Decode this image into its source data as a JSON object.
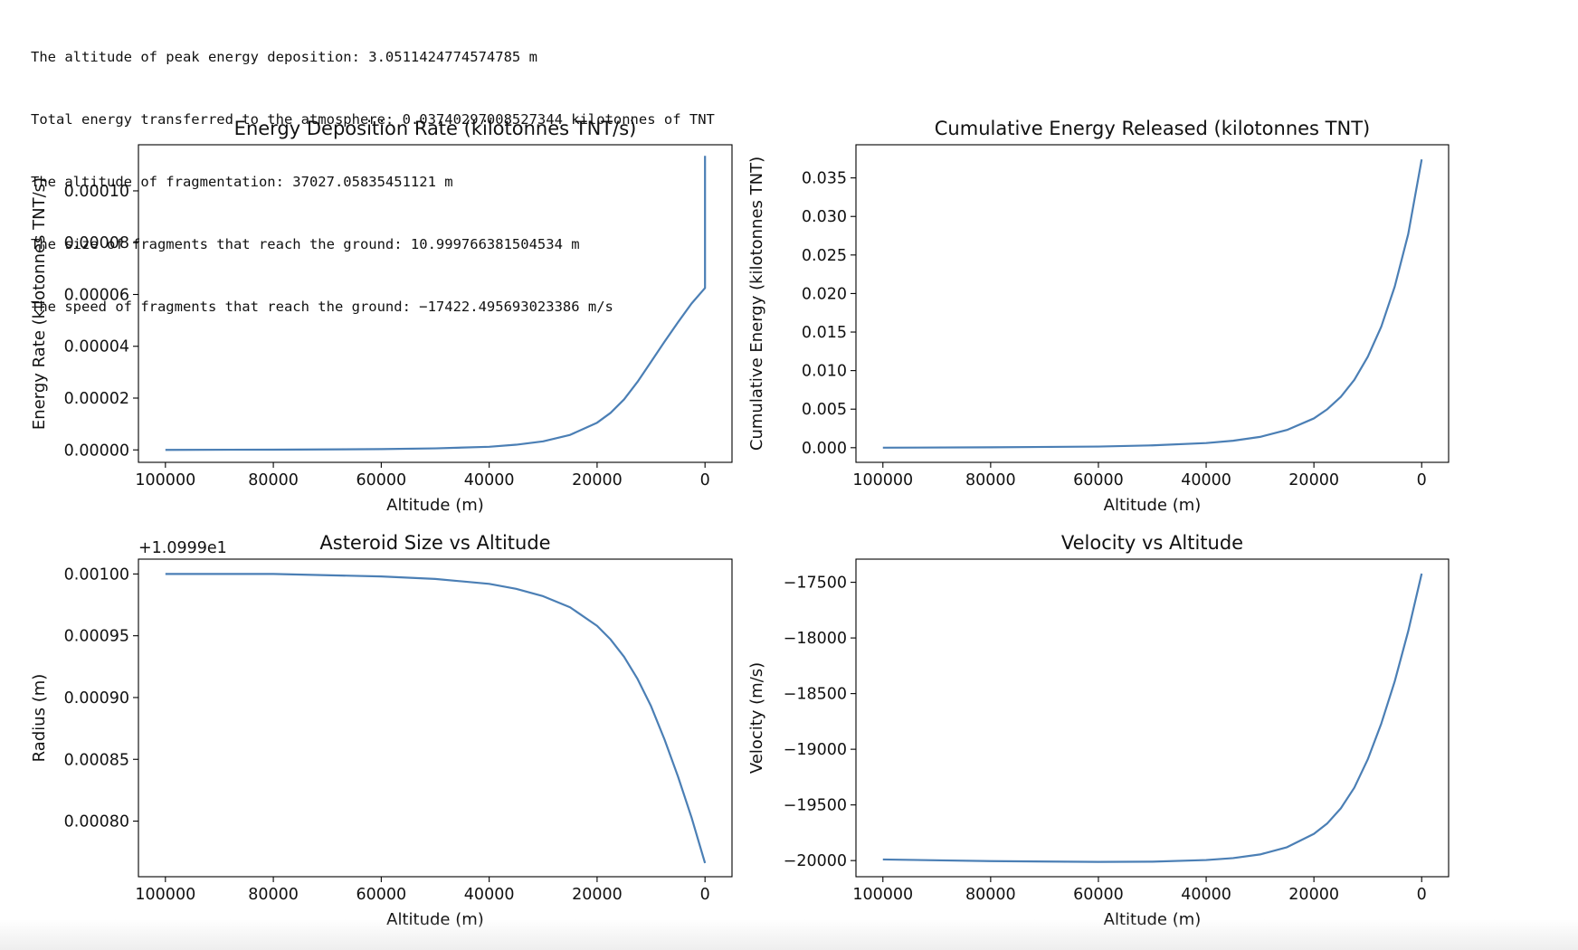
{
  "output_lines": [
    "The altitude of peak energy deposition: 3.0511424774574785 m",
    "Total energy transferred to the atmosphere: 0.03740297008527344 kilotonnes of TNT",
    "The altitude of fragmentation: 37027.05835451121 m",
    "The size of fragments that reach the ground: 10.999766381504534 m",
    "The speed of fragments that reach the ground: −17422.495693023386 m/s"
  ],
  "line_color": "#4b7fb5",
  "chart_data": [
    {
      "type": "line",
      "title": "Energy Deposition Rate (kilotonnes TNT/s)",
      "xlabel": "Altitude (m)",
      "ylabel": "Energy Rate (kilotonnes TNT/s)",
      "xlim": [
        105000,
        -5000
      ],
      "ylim": [
        -4.8e-06,
        0.0001178
      ],
      "xticks": [
        100000,
        80000,
        60000,
        40000,
        20000,
        0
      ],
      "xtick_labels": [
        "100000",
        "80000",
        "60000",
        "40000",
        "20000",
        "0"
      ],
      "yticks": [
        0,
        2e-05,
        4e-05,
        6e-05,
        8e-05,
        0.0001
      ],
      "ytick_labels": [
        "0.00000",
        "0.00002",
        "0.00004",
        "0.00006",
        "0.00008",
        "0.00010"
      ],
      "offset_label": "",
      "grid": false,
      "series": [
        {
          "x": [
            100000,
            80000,
            60000,
            50000,
            40000,
            35000,
            30000,
            25000,
            20000,
            17500,
            15000,
            12500,
            10000,
            7500,
            5000,
            2500,
            0,
            0
          ],
          "y": [
            0,
            1e-07,
            3e-07,
            6e-07,
            1.2e-06,
            2e-06,
            3.3e-06,
            5.8e-06,
            1.05e-05,
            1.43e-05,
            1.95e-05,
            2.63e-05,
            3.4e-05,
            4.18e-05,
            4.93e-05,
            5.65e-05,
            6.25e-05,
            0.0001135
          ]
        }
      ]
    },
    {
      "type": "line",
      "title": "Cumulative Energy Released (kilotonnes TNT)",
      "xlabel": "Altitude (m)",
      "ylabel": "Cumulative Energy (kilotonnes TNT)",
      "xlim": [
        105000,
        -5000
      ],
      "ylim": [
        -0.0019,
        0.0393
      ],
      "xticks": [
        100000,
        80000,
        60000,
        40000,
        20000,
        0
      ],
      "xtick_labels": [
        "100000",
        "80000",
        "60000",
        "40000",
        "20000",
        "0"
      ],
      "yticks": [
        0,
        0.005,
        0.01,
        0.015,
        0.02,
        0.025,
        0.03,
        0.035
      ],
      "ytick_labels": [
        "0.000",
        "0.005",
        "0.010",
        "0.015",
        "0.020",
        "0.025",
        "0.030",
        "0.035"
      ],
      "offset_label": "",
      "grid": false,
      "series": [
        {
          "x": [
            100000,
            80000,
            60000,
            50000,
            40000,
            35000,
            30000,
            25000,
            20000,
            17500,
            15000,
            12500,
            10000,
            7500,
            5000,
            2500,
            0
          ],
          "y": [
            0,
            5e-05,
            0.00015,
            0.0003,
            0.0006,
            0.0009,
            0.0014,
            0.0023,
            0.0038,
            0.005,
            0.0066,
            0.0088,
            0.0118,
            0.0157,
            0.0209,
            0.0277,
            0.0374
          ]
        }
      ]
    },
    {
      "type": "line",
      "title": "Asteroid Size vs Altitude",
      "xlabel": "Altitude (m)",
      "ylabel": "Radius (m)",
      "xlim": [
        105000,
        -5000
      ],
      "ylim": [
        0.000755,
        0.001012
      ],
      "xticks": [
        100000,
        80000,
        60000,
        40000,
        20000,
        0
      ],
      "xtick_labels": [
        "100000",
        "80000",
        "60000",
        "40000",
        "20000",
        "0"
      ],
      "yticks": [
        0.0008,
        0.00085,
        0.0009,
        0.00095,
        0.001
      ],
      "ytick_labels": [
        "0.00080",
        "0.00085",
        "0.00090",
        "0.00095",
        "0.00100"
      ],
      "offset_label": "+1.0999e1",
      "grid": false,
      "series": [
        {
          "x": [
            100000,
            80000,
            60000,
            50000,
            40000,
            35000,
            30000,
            25000,
            20000,
            17500,
            15000,
            12500,
            10000,
            7500,
            5000,
            2500,
            0
          ],
          "y": [
            0.001,
            0.001,
            0.000998,
            0.000996,
            0.000992,
            0.000988,
            0.000982,
            0.000973,
            0.000958,
            0.000947,
            0.000933,
            0.000915,
            0.000893,
            0.000866,
            0.000836,
            0.000803,
            0.000766
          ]
        }
      ]
    },
    {
      "type": "line",
      "title": "Velocity vs Altitude",
      "xlabel": "Altitude (m)",
      "ylabel": "Velocity (m/s)",
      "xlim": [
        105000,
        -5000
      ],
      "ylim": [
        -20145,
        -17292
      ],
      "xticks": [
        100000,
        80000,
        60000,
        40000,
        20000,
        0
      ],
      "xtick_labels": [
        "100000",
        "80000",
        "60000",
        "40000",
        "20000",
        "0"
      ],
      "yticks": [
        -20000,
        -19500,
        -19000,
        -18500,
        -18000,
        -17500
      ],
      "ytick_labels": [
        "−20000",
        "−19500",
        "−19000",
        "−18500",
        "−18000",
        "−17500"
      ],
      "offset_label": "",
      "grid": false,
      "series": [
        {
          "x": [
            100000,
            80000,
            60000,
            50000,
            40000,
            35000,
            30000,
            25000,
            20000,
            17500,
            15000,
            12500,
            10000,
            7500,
            5000,
            2500,
            0
          ],
          "y": [
            -19990,
            -20005,
            -20012,
            -20010,
            -19995,
            -19978,
            -19945,
            -19880,
            -19760,
            -19665,
            -19530,
            -19345,
            -19090,
            -18770,
            -18390,
            -17940,
            -17422
          ]
        }
      ]
    }
  ]
}
